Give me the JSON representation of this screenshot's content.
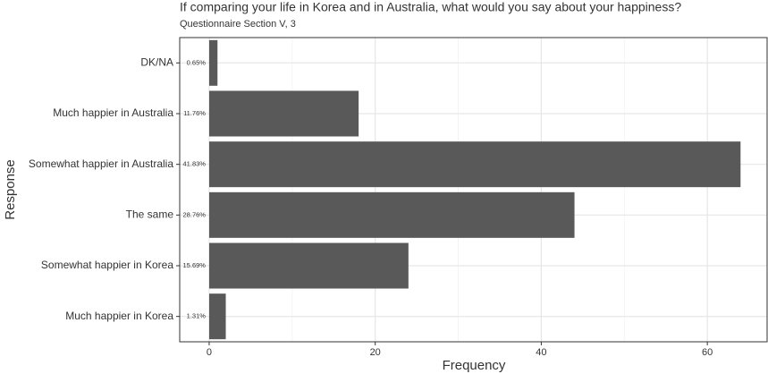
{
  "chart_data": {
    "type": "barh",
    "title": "If comparing your life in Korea and in Australia, what would you say about your happiness?",
    "subtitle": "Questionnaire Section V, 3",
    "x_label": "Frequency",
    "y_label": "Response",
    "categories": [
      "DK/NA",
      "Much happier in Australia",
      "Somewhat happier in Australia",
      "The same",
      "Somewhat happier in Korea",
      "Much happier in Korea"
    ],
    "values": [
      1,
      18,
      64,
      44,
      24,
      2
    ],
    "percent_labels": [
      "0.65%",
      "11.76%",
      "41.83%",
      "28.76%",
      "15.69%",
      "1.31%"
    ],
    "color": "#595959",
    "xlim": [
      -3.55,
      67.2
    ],
    "xticks": [
      0,
      20,
      40,
      60
    ],
    "xminor": [
      10,
      30,
      50
    ],
    "grid": true
  }
}
